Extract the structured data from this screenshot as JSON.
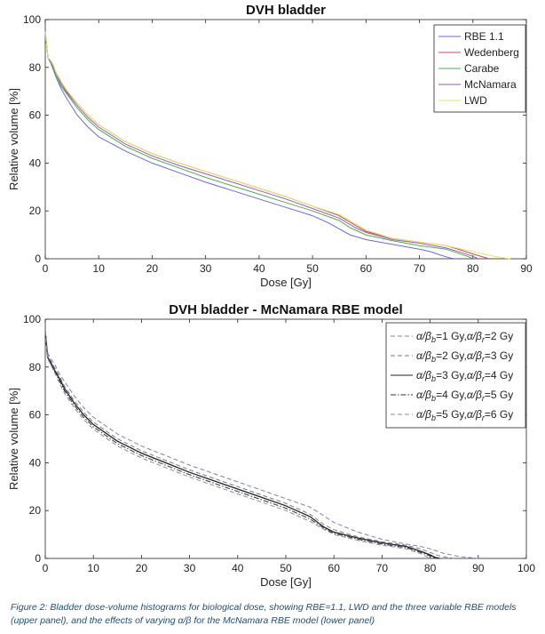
{
  "caption": "Figure 2: Bladder dose-volume histograms for biological dose, showing RBE=1.1, LWD and the three variable RBE models (upper panel), and the effects of varying α/β for the McNamara RBE model (lower panel)",
  "chart_data": [
    {
      "type": "line",
      "title": "DVH bladder",
      "xlabel": "Dose [Gy]",
      "ylabel": "Relative volume [%]",
      "xlim": [
        0,
        90
      ],
      "ylim": [
        0,
        100
      ],
      "xticks": [
        0,
        10,
        20,
        30,
        40,
        50,
        60,
        70,
        80,
        90
      ],
      "yticks": [
        0,
        20,
        40,
        60,
        80,
        100
      ],
      "legend_position": "top-right",
      "series": [
        {
          "name": "RBE 1.1",
          "color": "#6b6bd6",
          "dash": "solid",
          "x": [
            0,
            0.5,
            1,
            1.5,
            2,
            3,
            4,
            6,
            8,
            10,
            15,
            20,
            25,
            30,
            35,
            40,
            45,
            50,
            53,
            55,
            57,
            60,
            65,
            70,
            72,
            74,
            75,
            76,
            77
          ],
          "y": [
            95,
            84,
            82,
            79,
            76,
            71,
            67,
            60,
            55,
            51,
            45,
            40,
            36,
            32,
            28.5,
            25,
            21.5,
            18,
            15,
            12.5,
            10,
            8,
            6,
            4,
            3,
            1.5,
            0.8,
            0.2,
            0
          ]
        },
        {
          "name": "Wedenberg",
          "color": "#c0504d",
          "dash": "solid",
          "x": [
            0,
            0.5,
            1,
            1.5,
            2,
            3,
            4,
            6,
            8,
            10,
            15,
            20,
            25,
            30,
            35,
            40,
            45,
            50,
            55,
            58,
            60,
            65,
            70,
            75,
            78,
            80,
            82,
            83
          ],
          "y": [
            95,
            84,
            83,
            81,
            78,
            74,
            70,
            65,
            60,
            56,
            49,
            44,
            40,
            36.5,
            33,
            29.5,
            26,
            22,
            18,
            14,
            11.5,
            8.5,
            7,
            5.5,
            3.5,
            2,
            0.7,
            0
          ]
        },
        {
          "name": "Carabe",
          "color": "#4caf50",
          "dash": "solid",
          "x": [
            0,
            0.5,
            1,
            1.5,
            2,
            3,
            4,
            6,
            8,
            10,
            15,
            20,
            25,
            30,
            35,
            40,
            45,
            50,
            55,
            57,
            60,
            65,
            70,
            75,
            77,
            79,
            80
          ],
          "y": [
            95,
            84,
            82,
            80,
            77,
            72,
            69,
            63,
            58,
            54,
            47,
            42,
            38,
            34,
            30.5,
            27,
            23.5,
            20,
            16,
            13,
            10,
            7.5,
            5.5,
            4,
            2.5,
            1,
            0
          ]
        },
        {
          "name": "McNamara",
          "color": "#9b59b6",
          "dash": "solid",
          "x": [
            0,
            0.5,
            1,
            1.5,
            2,
            3,
            4,
            6,
            8,
            10,
            15,
            20,
            25,
            30,
            35,
            40,
            45,
            50,
            55,
            58,
            60,
            65,
            70,
            75,
            78,
            80,
            81
          ],
          "y": [
            95,
            84,
            82.5,
            80.5,
            78,
            73,
            69.5,
            64,
            59,
            55,
            48,
            43,
            39,
            35.5,
            32,
            28.5,
            25,
            21,
            17,
            13,
            11,
            8,
            6.5,
            4.5,
            2.5,
            1,
            0
          ]
        },
        {
          "name": "LWD",
          "color": "#e5e56a",
          "dash": "solid",
          "x": [
            0,
            0.5,
            1,
            1.5,
            2,
            3,
            4,
            6,
            8,
            10,
            15,
            20,
            25,
            30,
            35,
            40,
            45,
            50,
            55,
            60,
            65,
            70,
            75,
            78,
            80,
            82,
            84,
            86,
            87
          ],
          "y": [
            95,
            84,
            83,
            81,
            78,
            74,
            70.5,
            65,
            60,
            56,
            49,
            44,
            40,
            36.5,
            33,
            29.5,
            26,
            22,
            18.5,
            12,
            8.5,
            7,
            5.5,
            4,
            3,
            2,
            1,
            0.3,
            0
          ]
        }
      ]
    },
    {
      "type": "line",
      "title": "DVH bladder - McNamara RBE model",
      "xlabel": "Dose [Gy]",
      "ylabel": "Relative volume [%]",
      "xlim": [
        0,
        100
      ],
      "ylim": [
        0,
        100
      ],
      "xticks": [
        0,
        10,
        20,
        30,
        40,
        50,
        60,
        70,
        80,
        90,
        100
      ],
      "yticks": [
        0,
        20,
        40,
        60,
        80,
        100
      ],
      "legend_position": "top-right",
      "series": [
        {
          "label_parts": {
            "a": "1",
            "r": "2"
          },
          "color": "#7a80c8",
          "dash": "dashed",
          "x": [
            0,
            0.5,
            1,
            2,
            3,
            4,
            6,
            8,
            10,
            15,
            20,
            25,
            30,
            35,
            40,
            45,
            50,
            55,
            57,
            60,
            65,
            70,
            75,
            78,
            80,
            83,
            86,
            89,
            90
          ],
          "y": [
            95,
            86,
            84,
            81,
            77,
            74,
            68,
            63,
            59,
            52,
            47,
            43,
            39,
            35.5,
            32,
            28.5,
            25,
            21.5,
            19,
            15,
            11,
            8,
            6,
            5,
            4,
            2,
            0.8,
            0.2,
            0
          ]
        },
        {
          "label_parts": {
            "a": "2",
            "r": "3"
          },
          "color": "#7a7a7a",
          "dash": "dashed",
          "x": [
            0,
            0.5,
            1,
            2,
            3,
            4,
            6,
            8,
            10,
            15,
            20,
            25,
            30,
            35,
            40,
            45,
            50,
            55,
            58,
            60,
            65,
            70,
            75,
            78,
            80,
            82,
            84,
            85
          ],
          "y": [
            95,
            85,
            83,
            79.5,
            76,
            72,
            66,
            61,
            57,
            50,
            45,
            41,
            37,
            33.5,
            30,
            26.5,
            23,
            18.5,
            14,
            12,
            9,
            7,
            5.5,
            4,
            2.5,
            1,
            0.3,
            0
          ]
        },
        {
          "label_parts": {
            "a": "3",
            "r": "4"
          },
          "color": "#222222",
          "dash": "solid",
          "x": [
            0,
            0.5,
            1,
            2,
            3,
            4,
            6,
            8,
            10,
            15,
            20,
            25,
            30,
            35,
            40,
            45,
            50,
            55,
            58,
            60,
            65,
            70,
            75,
            78,
            80,
            81,
            82
          ],
          "y": [
            95,
            84,
            82.5,
            78.5,
            75,
            71,
            65,
            60,
            56,
            49,
            44,
            40,
            36,
            32.5,
            29,
            25.5,
            22,
            17.5,
            13,
            11,
            8.5,
            6.5,
            5,
            3,
            1.5,
            0.5,
            0
          ]
        },
        {
          "label_parts": {
            "a": "4",
            "r": "5"
          },
          "color": "#333333",
          "dash": "dashdot",
          "x": [
            0,
            0.5,
            1,
            2,
            3,
            4,
            6,
            8,
            10,
            15,
            20,
            25,
            30,
            35,
            40,
            45,
            50,
            55,
            58,
            60,
            65,
            70,
            75,
            78,
            80,
            81
          ],
          "y": [
            95,
            84,
            82,
            78,
            74,
            70,
            64,
            59,
            55,
            48,
            43,
            39,
            35,
            31.5,
            28,
            24.5,
            21,
            16.5,
            12.5,
            10.5,
            8,
            6,
            4.5,
            2.5,
            1,
            0
          ]
        },
        {
          "label_parts": {
            "a": "5",
            "r": "6"
          },
          "color": "#8a8ab0",
          "dash": "dashed",
          "x": [
            0,
            0.5,
            1,
            2,
            3,
            4,
            6,
            8,
            10,
            15,
            20,
            25,
            30,
            35,
            40,
            45,
            50,
            55,
            58,
            60,
            65,
            70,
            75,
            78,
            80
          ],
          "y": [
            95,
            83.5,
            81.5,
            77.5,
            73,
            69,
            63,
            58,
            54,
            47,
            42,
            38,
            34,
            30.5,
            27,
            23.5,
            20,
            15.5,
            12,
            10,
            7.5,
            5.5,
            4,
            2,
            0
          ]
        }
      ]
    }
  ]
}
